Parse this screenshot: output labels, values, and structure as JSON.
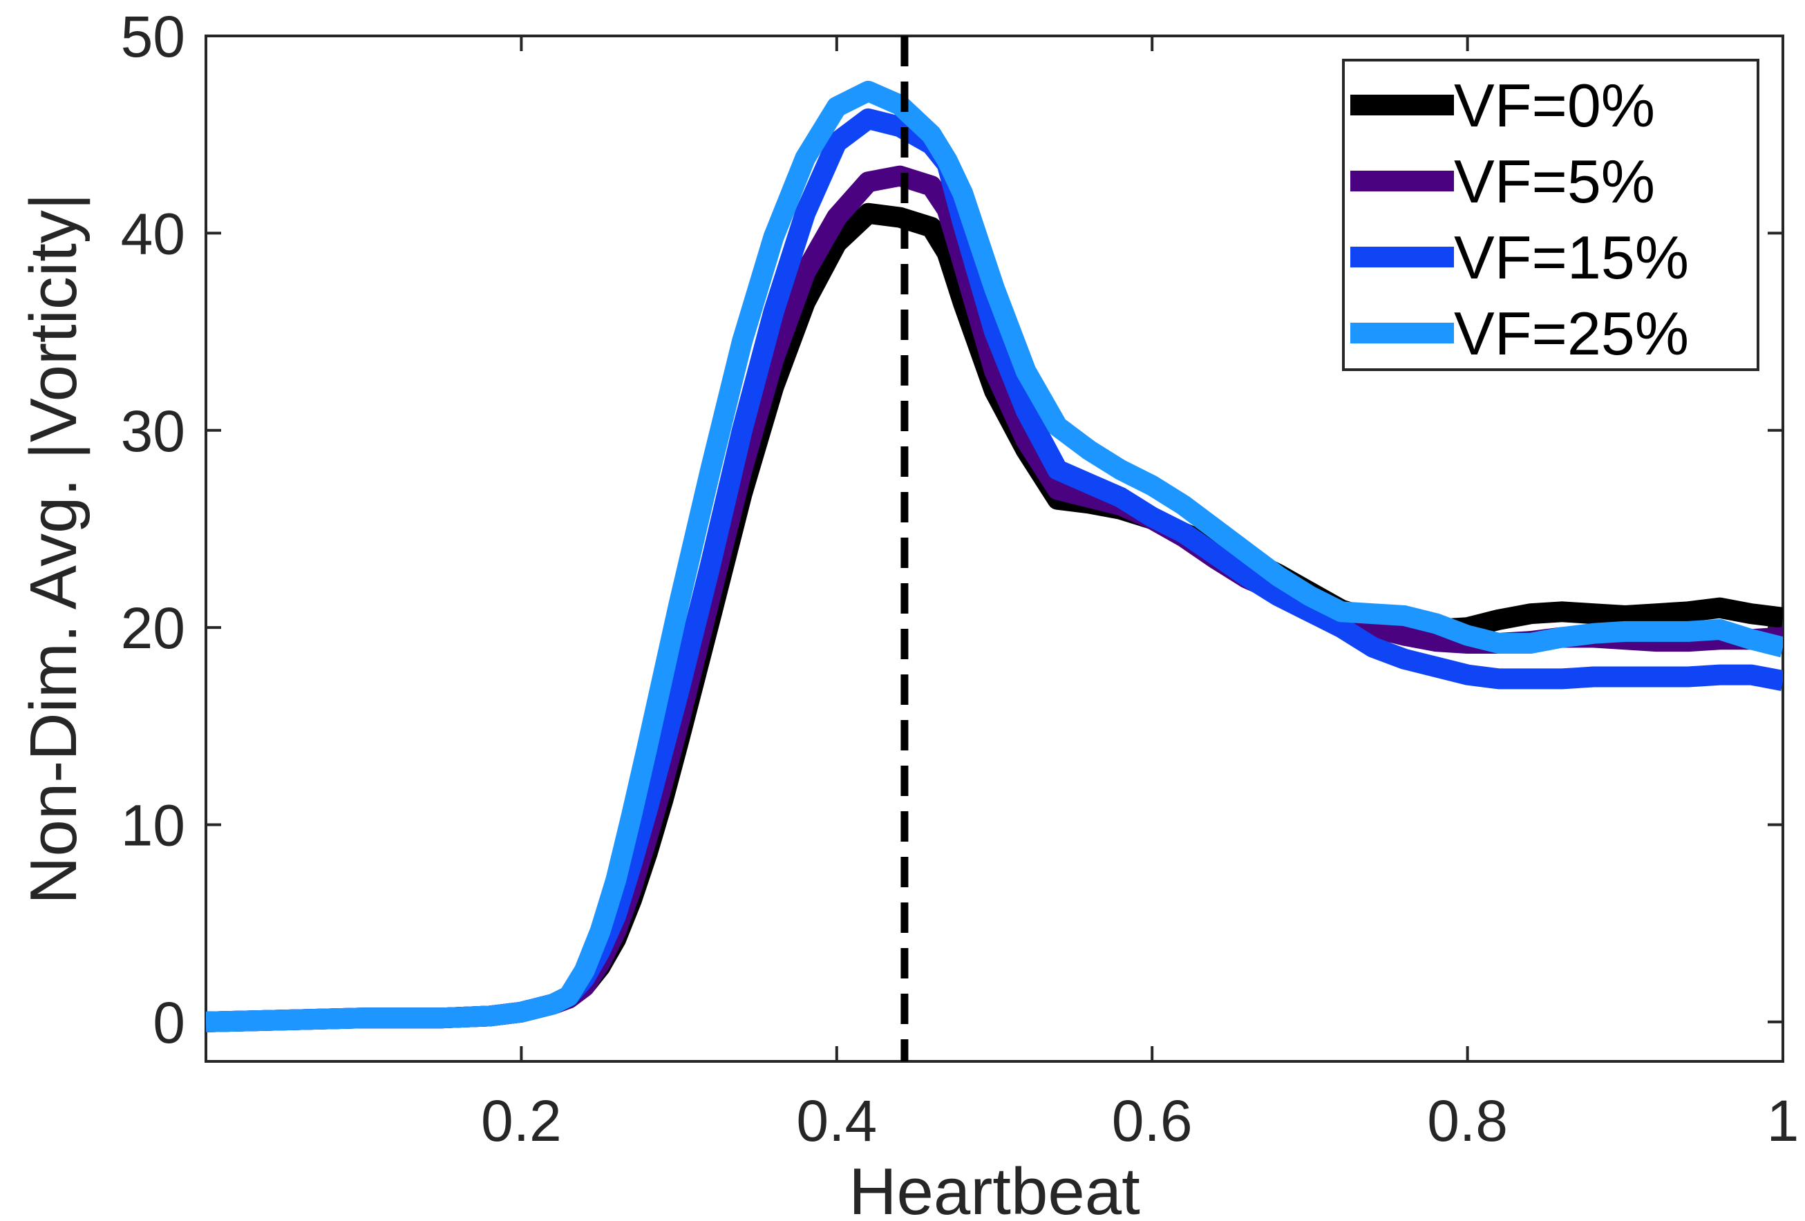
{
  "chart_data": {
    "type": "line",
    "title": "",
    "xlabel": "Heartbeat",
    "ylabel": "Non-Dim. Avg. |Vorticity|",
    "xlim": [
      0,
      1
    ],
    "ylim": [
      -2,
      50
    ],
    "xticks": [
      0.2,
      0.4,
      0.6,
      0.8,
      1
    ],
    "xtick_labels": [
      "0.2",
      "0.4",
      "0.6",
      "0.8",
      "1"
    ],
    "yticks": [
      0,
      10,
      20,
      30,
      40,
      50
    ],
    "ytick_labels": [
      "0",
      "10",
      "20",
      "30",
      "40",
      "50"
    ],
    "grid": false,
    "legend_position": "top-right",
    "reference_line": {
      "x": 0.443,
      "style": "dashed",
      "color": "#000000"
    },
    "x": [
      0,
      0.05,
      0.1,
      0.15,
      0.18,
      0.2,
      0.22,
      0.23,
      0.24,
      0.25,
      0.26,
      0.27,
      0.28,
      0.29,
      0.3,
      0.32,
      0.34,
      0.36,
      0.38,
      0.4,
      0.42,
      0.44,
      0.46,
      0.47,
      0.48,
      0.5,
      0.52,
      0.54,
      0.56,
      0.58,
      0.6,
      0.62,
      0.64,
      0.66,
      0.68,
      0.7,
      0.72,
      0.74,
      0.76,
      0.78,
      0.8,
      0.82,
      0.84,
      0.86,
      0.88,
      0.9,
      0.92,
      0.94,
      0.96,
      0.98,
      1.0
    ],
    "series": [
      {
        "name": "VF=0%",
        "color": "#000000",
        "values": [
          0.0,
          0.1,
          0.2,
          0.2,
          0.3,
          0.5,
          0.9,
          1.2,
          1.8,
          2.8,
          4.2,
          6.2,
          8.6,
          11.3,
          14.3,
          20.5,
          26.8,
          32.2,
          36.5,
          39.5,
          41.0,
          40.8,
          40.3,
          39.0,
          36.5,
          32.0,
          29.0,
          26.5,
          26.3,
          26.0,
          25.5,
          24.8,
          24.1,
          23.5,
          22.7,
          21.8,
          20.9,
          20.4,
          20.0,
          19.9,
          20.0,
          20.4,
          20.7,
          20.8,
          20.7,
          20.6,
          20.7,
          20.8,
          21.0,
          20.7,
          20.5
        ]
      },
      {
        "name": "VF=5%",
        "color": "#4a0280",
        "values": [
          0.0,
          0.1,
          0.2,
          0.2,
          0.3,
          0.5,
          0.9,
          1.2,
          1.8,
          3.0,
          4.6,
          6.8,
          9.4,
          12.2,
          15.2,
          21.6,
          28.0,
          33.6,
          38.0,
          40.8,
          42.6,
          42.9,
          42.4,
          41.2,
          38.5,
          33.0,
          29.5,
          27.0,
          26.6,
          26.2,
          25.5,
          24.6,
          23.5,
          22.5,
          21.8,
          21.2,
          20.5,
          20.0,
          19.6,
          19.3,
          19.2,
          19.2,
          19.3,
          19.5,
          19.5,
          19.4,
          19.3,
          19.3,
          19.4,
          19.4,
          19.5
        ]
      },
      {
        "name": "VF=15%",
        "color": "#0f45f5",
        "values": [
          0.0,
          0.1,
          0.2,
          0.2,
          0.3,
          0.5,
          0.9,
          1.3,
          2.2,
          3.6,
          5.4,
          8.0,
          10.8,
          13.8,
          16.8,
          23.2,
          30.0,
          36.0,
          41.0,
          44.6,
          45.8,
          45.4,
          44.5,
          43.5,
          40.5,
          35.0,
          31.0,
          28.0,
          27.3,
          26.6,
          25.6,
          24.8,
          23.7,
          22.6,
          21.6,
          20.8,
          20.0,
          19.0,
          18.4,
          18.0,
          17.6,
          17.4,
          17.4,
          17.4,
          17.5,
          17.5,
          17.5,
          17.5,
          17.6,
          17.6,
          17.3
        ]
      },
      {
        "name": "VF=25%",
        "color": "#1e96ff",
        "values": [
          0.0,
          0.1,
          0.2,
          0.2,
          0.3,
          0.5,
          0.9,
          1.3,
          2.6,
          4.6,
          7.2,
          10.5,
          14.0,
          17.6,
          21.2,
          28.0,
          34.5,
          39.8,
          43.8,
          46.4,
          47.2,
          46.5,
          45.0,
          43.7,
          42.0,
          37.2,
          33.0,
          30.2,
          29.0,
          28.0,
          27.2,
          26.2,
          25.0,
          23.8,
          22.6,
          21.6,
          20.8,
          20.7,
          20.6,
          20.2,
          19.6,
          19.2,
          19.2,
          19.5,
          19.7,
          19.8,
          19.8,
          19.8,
          19.9,
          19.4,
          19.0
        ]
      }
    ]
  }
}
